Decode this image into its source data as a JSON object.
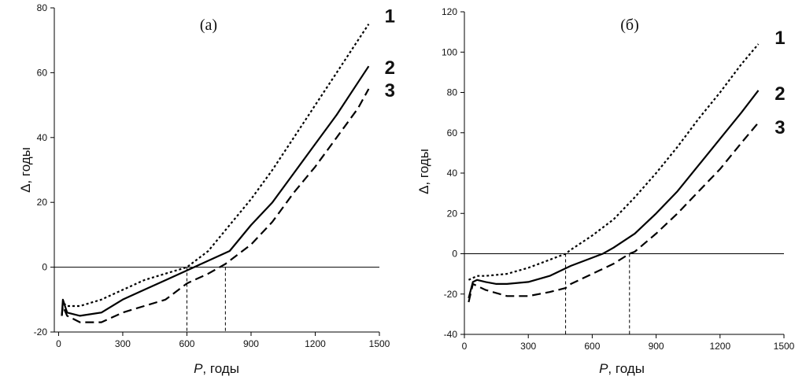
{
  "chart_data": [
    {
      "type": "line",
      "title": "(а)",
      "xlabel_var": "P",
      "xlabel_rest": ", годы",
      "ylabel": "Δ, годы",
      "xlim": [
        -20,
        1500
      ],
      "ylim": [
        -20,
        80
      ],
      "xticks": [
        "0",
        "300",
        "600",
        "900",
        "1200",
        "1500"
      ],
      "yticks": [
        "-20",
        "0",
        "20",
        "40",
        "60",
        "80"
      ],
      "reference_line_y": 0,
      "marker_x": [
        600,
        780
      ],
      "series": [
        {
          "name": "1",
          "style": "dotted",
          "x": [
            15,
            20,
            40,
            100,
            200,
            300,
            400,
            500,
            600,
            700,
            800,
            900,
            1000,
            1100,
            1200,
            1300,
            1400,
            1450
          ],
          "y": [
            -15,
            -11,
            -12,
            -12,
            -10,
            -7,
            -4,
            -2,
            0,
            5,
            13,
            21,
            30,
            40,
            50,
            60,
            70,
            75
          ]
        },
        {
          "name": "2",
          "style": "solid",
          "x": [
            15,
            20,
            40,
            100,
            200,
            300,
            400,
            500,
            600,
            700,
            800,
            900,
            1000,
            1100,
            1200,
            1300,
            1400,
            1450
          ],
          "y": [
            -15,
            -10,
            -14,
            -15,
            -14,
            -10,
            -7,
            -4,
            -1,
            2,
            5,
            13,
            20,
            29,
            38,
            47,
            57,
            62
          ]
        },
        {
          "name": "3",
          "style": "dashed",
          "x": [
            15,
            20,
            40,
            100,
            200,
            300,
            400,
            500,
            600,
            700,
            780,
            800,
            900,
            1000,
            1100,
            1200,
            1300,
            1400,
            1450
          ],
          "y": [
            -15,
            -12,
            -15,
            -17,
            -17,
            -14,
            -12,
            -10,
            -5,
            -2,
            1,
            2,
            7,
            14,
            23,
            31,
            40,
            49,
            55
          ]
        }
      ]
    },
    {
      "type": "line",
      "title": "(б)",
      "xlabel_var": "P",
      "xlabel_rest": ", годы",
      "ylabel": "Δ, годы",
      "xlim": [
        0,
        1500
      ],
      "ylim": [
        -40,
        120
      ],
      "xticks": [
        "0",
        "300",
        "600",
        "900",
        "1200",
        "1500"
      ],
      "yticks": [
        "-40",
        "-20",
        "0",
        "20",
        "40",
        "60",
        "80",
        "100",
        "120"
      ],
      "reference_line_y": 0,
      "marker_x": [
        475,
        775
      ],
      "series": [
        {
          "name": "1",
          "style": "dotted",
          "x": [
            20,
            40,
            60,
            100,
            200,
            300,
            400,
            475,
            500,
            600,
            700,
            800,
            900,
            1000,
            1100,
            1200,
            1300,
            1380
          ],
          "y": [
            -13,
            -12,
            -11,
            -11,
            -10,
            -7,
            -3,
            0,
            2,
            9,
            17,
            28,
            40,
            53,
            67,
            80,
            94,
            104
          ]
        },
        {
          "name": "2",
          "style": "solid",
          "x": [
            20,
            40,
            60,
            100,
            150,
            200,
            300,
            400,
            500,
            600,
            650,
            700,
            800,
            900,
            1000,
            1100,
            1200,
            1300,
            1380
          ],
          "y": [
            -22,
            -14,
            -13,
            -14,
            -15,
            -15,
            -14,
            -11,
            -6,
            -2,
            0,
            3,
            10,
            20,
            31,
            44,
            57,
            70,
            81
          ]
        },
        {
          "name": "3",
          "style": "dashed",
          "x": [
            20,
            40,
            60,
            100,
            200,
            300,
            400,
            475,
            500,
            600,
            700,
            775,
            800,
            900,
            1000,
            1100,
            1200,
            1300,
            1380
          ],
          "y": [
            -24,
            -15,
            -16,
            -18,
            -21,
            -21,
            -19,
            -17,
            -15,
            -10,
            -5,
            0,
            1,
            10,
            20,
            31,
            42,
            55,
            65
          ]
        }
      ]
    }
  ]
}
